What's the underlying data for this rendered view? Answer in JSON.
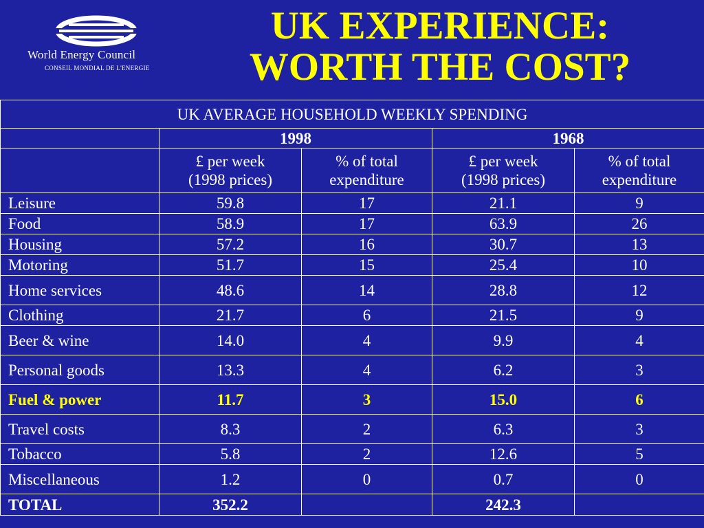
{
  "logo": {
    "name": "World Energy Council",
    "subname": "CONSEIL MONDIAL DE L'ENERGIE"
  },
  "title": {
    "line1": "UK EXPERIENCE:",
    "line2": "WORTH THE COST?"
  },
  "table": {
    "caption": "UK AVERAGE HOUSEHOLD WEEKLY SPENDING",
    "years": [
      "1998",
      "1968"
    ],
    "col_headers": [
      {
        "line1": "£ per week",
        "line2": "(1998 prices)"
      },
      {
        "line1": "% of total",
        "line2": "expenditure"
      },
      {
        "line1": "£ per week",
        "line2": "(1998 prices)"
      },
      {
        "line1": "% of total",
        "line2": "expenditure"
      }
    ],
    "rows": [
      {
        "label": "Leisure",
        "cells": [
          "59.8",
          "17",
          "21.1",
          "9"
        ]
      },
      {
        "label": "Food",
        "cells": [
          "58.9",
          "17",
          "63.9",
          "26"
        ]
      },
      {
        "label": "Housing",
        "cells": [
          "57.2",
          "16",
          "30.7",
          "13"
        ]
      },
      {
        "label": "Motoring",
        "cells": [
          "51.7",
          "15",
          "25.4",
          "10"
        ]
      },
      {
        "label": "Home services",
        "cells": [
          "48.6",
          "14",
          "28.8",
          "12"
        ]
      },
      {
        "label": "Clothing",
        "cells": [
          "21.7",
          "6",
          "21.5",
          "9"
        ]
      },
      {
        "label": "Beer & wine",
        "cells": [
          "14.0",
          "4",
          "9.9",
          "4"
        ]
      },
      {
        "label": "Personal goods",
        "cells": [
          "13.3",
          "4",
          "6.2",
          "3"
        ]
      },
      {
        "label": "Fuel & power",
        "cells": [
          "11.7",
          "3",
          "15.0",
          "6"
        ],
        "highlight": true
      },
      {
        "label": "Travel costs",
        "cells": [
          "8.3",
          "2",
          "6.3",
          "3"
        ]
      },
      {
        "label": "Tobacco",
        "cells": [
          "5.8",
          "2",
          "12.6",
          "5"
        ]
      },
      {
        "label": "Miscellaneous",
        "cells": [
          "1.2",
          "0",
          "0.7",
          "0"
        ]
      }
    ],
    "total": {
      "label": "TOTAL",
      "cells": [
        "352.2",
        "",
        "242.3",
        ""
      ]
    }
  },
  "colors": {
    "background": "#1e22a0",
    "title": "#ffff00",
    "highlight": "#ffff00",
    "text": "#ffffff"
  }
}
